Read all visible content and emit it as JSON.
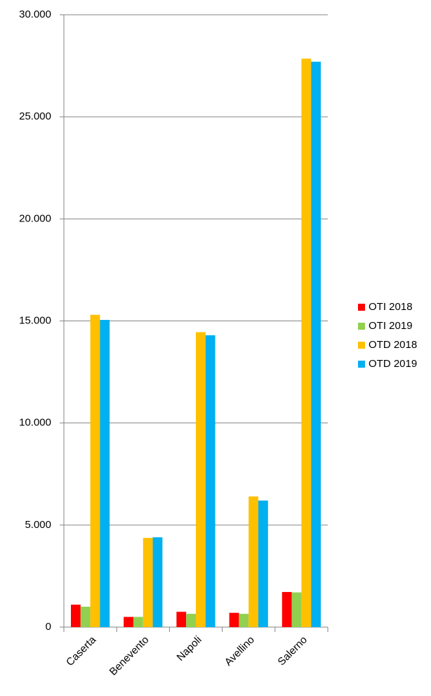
{
  "chart_data": {
    "type": "bar",
    "categories": [
      "Caserta",
      "Benevento",
      "Napoli",
      "Avellino",
      "Salerno"
    ],
    "series": [
      {
        "name": "OTI 2018",
        "color": "#ff0000",
        "values": [
          1100,
          500,
          750,
          700,
          1720
        ]
      },
      {
        "name": "OTI 2019",
        "color": "#92d050",
        "values": [
          1000,
          500,
          650,
          650,
          1700
        ]
      },
      {
        "name": "OTD 2018",
        "color": "#ffc000",
        "values": [
          15300,
          4370,
          14450,
          6400,
          27850
        ]
      },
      {
        "name": "OTD 2019",
        "color": "#00b0f0",
        "values": [
          15050,
          4400,
          14300,
          6200,
          27700
        ]
      }
    ],
    "ylim": [
      0,
      30000
    ],
    "yticks": [
      0,
      {
        "value": 5000,
        "label": "5.000"
      },
      {
        "value": 10000,
        "label": "10.000"
      },
      {
        "value": 15000,
        "label": "15.000"
      },
      {
        "value": 20000,
        "label": "20.000"
      },
      {
        "value": 25000,
        "label": "25.000"
      },
      {
        "value": 30000,
        "label": "30.000"
      }
    ],
    "grid": true,
    "legend": "right"
  }
}
